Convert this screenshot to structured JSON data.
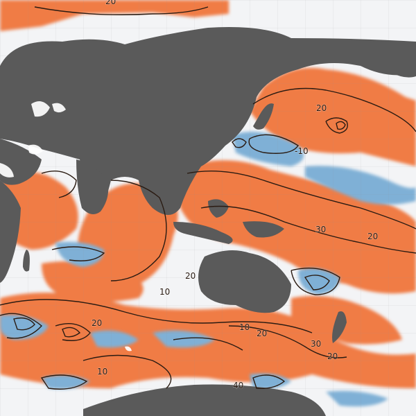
{
  "map": {
    "colors": {
      "land": "#5a5a5a",
      "positive_anomaly": "#f07b45",
      "negative_anomaly": "#7fb0d6",
      "neutral_ocean": "#f3f4f6",
      "contour_line": "#2a1b12",
      "grid": "#8c8c8c"
    },
    "contour_labels": [
      "20",
      "20",
      "-10",
      "30",
      "20",
      "10",
      "20",
      "20",
      "10",
      "20",
      "30",
      "20",
      "10",
      "40"
    ]
  }
}
